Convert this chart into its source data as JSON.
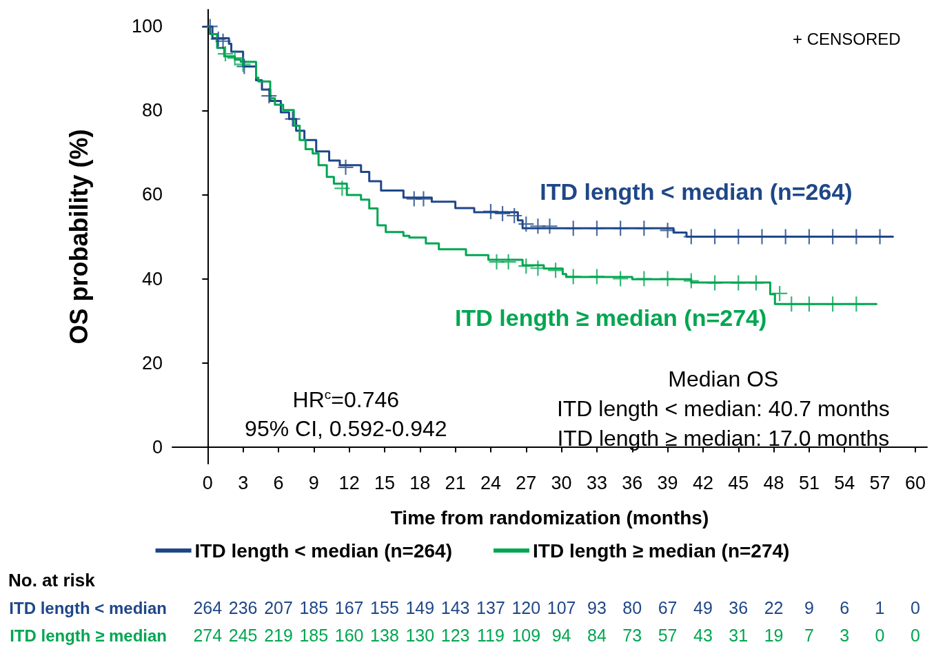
{
  "chart_data": {
    "type": "step",
    "xlabel": "Time from randomization (months)",
    "ylabel": "OS probability (%)",
    "xlim": [
      -3,
      61
    ],
    "xticks": [
      0,
      3,
      6,
      9,
      12,
      15,
      18,
      21,
      24,
      27,
      30,
      33,
      36,
      39,
      42,
      45,
      48,
      51,
      54,
      57,
      60
    ],
    "ylim": [
      -4,
      104
    ],
    "yticks": [
      0,
      20,
      40,
      60,
      80,
      100
    ],
    "grid": false,
    "legend": "bottom",
    "line_style": "solid",
    "series": [
      {
        "name": "ITD length < median (n=264)",
        "color": "#1f4788",
        "x": [
          0,
          0.4,
          1.8,
          2.0,
          3.0,
          4.1,
          4.6,
          5.3,
          6.2,
          6.9,
          7.5,
          8.2,
          9.2,
          10.3,
          11.2,
          13.0,
          13.7,
          14.7,
          16.6,
          19.0,
          21.0,
          22.6,
          26.3,
          26.7,
          39.5,
          40.6,
          58.1
        ],
        "values": [
          100,
          97.2,
          95.9,
          94,
          90.5,
          87.2,
          85,
          82.3,
          79.6,
          78,
          75.2,
          73,
          70.3,
          68.1,
          67,
          65.4,
          63.2,
          61,
          59.3,
          58.3,
          56.8,
          55.8,
          53.9,
          52,
          51,
          50,
          50
        ]
      },
      {
        "name": "ITD length ≥ median (n=274)",
        "color": "#00a651",
        "x": [
          0,
          0.2,
          0.8,
          1.4,
          2.3,
          2.8,
          4.1,
          4.3,
          5.3,
          5.7,
          6.4,
          7.3,
          7.8,
          8.3,
          8.9,
          9.4,
          10.1,
          10.7,
          11.8,
          13.0,
          13.7,
          14.4,
          15.1,
          16.6,
          17.1,
          18.5,
          19.6,
          21.9,
          23.8,
          26.7,
          28.5,
          30.1,
          30.4,
          36.0,
          41.0,
          47.7,
          48.1,
          56.7
        ],
        "values": [
          100,
          98.2,
          94.9,
          92.9,
          92.1,
          91.6,
          87.8,
          86.9,
          82.9,
          81.4,
          80.1,
          76.4,
          73,
          70.8,
          69.8,
          67,
          64.2,
          62.6,
          59.9,
          58.8,
          56.7,
          52.7,
          51.1,
          50.2,
          49.8,
          48.4,
          47,
          45.6,
          44.5,
          43.2,
          42.4,
          41.1,
          40.4,
          39.9,
          39.1,
          36.3,
          34,
          34
        ]
      },
      {
        "type": "scatter",
        "marker": "cross",
        "color": "#1f4788",
        "x": [
          0.2,
          0.9,
          1.3,
          3.1,
          5.2,
          7.2,
          11.7,
          17.5,
          18.3,
          24,
          25,
          26,
          27,
          28,
          29,
          31,
          33,
          35,
          37,
          39,
          41,
          43,
          45,
          47,
          49,
          51,
          53,
          55,
          57
        ],
        "values": [
          100,
          97,
          96.5,
          90.5,
          83.5,
          78,
          66.5,
          59,
          59,
          56,
          55.5,
          55,
          53,
          52.5,
          52.5,
          52,
          52,
          52,
          52,
          51.5,
          50,
          50,
          50,
          50,
          50,
          50,
          50,
          50,
          50
        ]
      },
      {
        "type": "scatter",
        "marker": "cross",
        "color": "#00a651",
        "x": [
          1.5,
          2.3,
          3,
          11.4,
          24.5,
          25.5,
          27,
          28,
          29.5,
          31,
          33,
          35,
          37,
          39,
          41,
          43,
          45,
          46.5,
          48.5,
          49.5,
          51,
          53,
          55
        ],
        "values": [
          93.5,
          92.5,
          91,
          61.5,
          44,
          44,
          43,
          42.5,
          42,
          40.5,
          40.5,
          40,
          40,
          40,
          39.5,
          39,
          39,
          39,
          36.5,
          34,
          34,
          34,
          34
        ]
      }
    ],
    "annotations": [
      "ITD length < median (n=264)",
      "ITD length ≥ median (n=274)",
      "+ CENSORED",
      "HR$^{c}$=0.746",
      "95% CI, 0.592-0.942",
      "Median OS",
      "ITD length < median: 40.7 months",
      "ITD length ≥ median: 17.0 months",
      "No. at risk",
      "ITD length < median",
      "264 236 207 185 167 155 149 143 137 120 107 93 80 67 49 36 22 9 6 1 0",
      "ITD length ≥ median",
      "274 245 219 185 160 138 130 123 119 109 94 84 73 57 43 31 19 7 3 0 0"
    ]
  }
}
